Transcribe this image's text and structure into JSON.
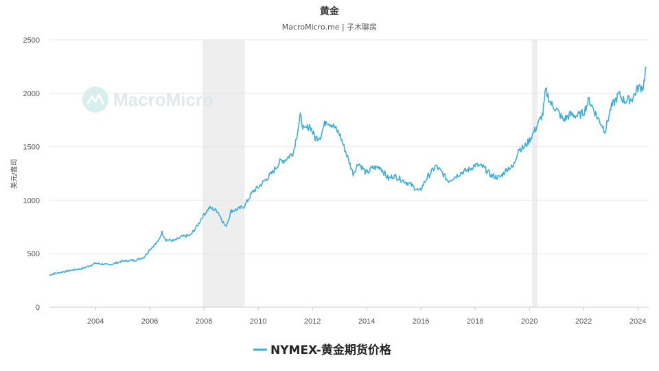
{
  "header": {
    "title": "黄金",
    "subtitle": "MacroMicro.me | 子木聊房"
  },
  "watermark": {
    "text": "MacroMicro"
  },
  "colors": {
    "series": "#3bafda",
    "shade": "#eeeeee",
    "grid": "#e6e6e6",
    "watermark_circle": "#d7efee"
  },
  "chart_data": {
    "type": "line",
    "title": "黄金",
    "subtitle": "MacroMicro.me | 子木聊房",
    "ylabel": "美元/盎司",
    "xlabel": "",
    "xlim": [
      2002.3,
      2024.4
    ],
    "ylim": [
      0,
      2500
    ],
    "x_ticks": [
      2004,
      2006,
      2008,
      2010,
      2012,
      2014,
      2016,
      2018,
      2020,
      2022,
      2024
    ],
    "y_ticks": [
      0,
      500,
      1000,
      1500,
      2000,
      2500
    ],
    "grid": true,
    "legend_position": "bottom-center",
    "recession_shading": [
      [
        2007.95,
        2009.5
      ],
      [
        2020.1,
        2020.3
      ]
    ],
    "series": [
      {
        "name": "NYMEX-黄金期货价格",
        "x": [
          2002.3,
          2002.5,
          2003.0,
          2003.5,
          2004.0,
          2004.5,
          2005.0,
          2005.5,
          2005.8,
          2006.0,
          2006.3,
          2006.45,
          2006.6,
          2006.9,
          2007.2,
          2007.5,
          2007.8,
          2007.95,
          2008.2,
          2008.5,
          2008.8,
          2008.9,
          2009.0,
          2009.3,
          2009.5,
          2009.8,
          2010.0,
          2010.5,
          2010.8,
          2011.0,
          2011.3,
          2011.55,
          2011.7,
          2011.9,
          2012.1,
          2012.3,
          2012.5,
          2012.75,
          2013.0,
          2013.3,
          2013.5,
          2013.7,
          2014.0,
          2014.2,
          2014.5,
          2014.8,
          2015.0,
          2015.3,
          2015.6,
          2015.95,
          2016.2,
          2016.55,
          2016.8,
          2017.0,
          2017.5,
          2017.8,
          2018.0,
          2018.3,
          2018.6,
          2018.9,
          2019.2,
          2019.4,
          2019.6,
          2019.8,
          2020.0,
          2020.25,
          2020.5,
          2020.6,
          2020.8,
          2021.0,
          2021.25,
          2021.5,
          2021.8,
          2022.0,
          2022.2,
          2022.5,
          2022.8,
          2023.0,
          2023.3,
          2023.5,
          2023.8,
          2024.0,
          2024.2,
          2024.3
        ],
        "y": [
          300,
          315,
          340,
          360,
          410,
          395,
          430,
          440,
          470,
          540,
          610,
          700,
          630,
          620,
          660,
          670,
          780,
          850,
          930,
          900,
          750,
          820,
          900,
          920,
          950,
          1080,
          1120,
          1250,
          1360,
          1380,
          1450,
          1780,
          1650,
          1700,
          1580,
          1600,
          1750,
          1700,
          1620,
          1400,
          1250,
          1350,
          1250,
          1300,
          1310,
          1200,
          1230,
          1190,
          1150,
          1080,
          1200,
          1320,
          1250,
          1180,
          1260,
          1290,
          1330,
          1310,
          1230,
          1210,
          1300,
          1310,
          1480,
          1490,
          1560,
          1680,
          1810,
          2030,
          1900,
          1850,
          1750,
          1800,
          1790,
          1820,
          1940,
          1780,
          1650,
          1860,
          1990,
          1930,
          1950,
          2050,
          2060,
          2250
        ]
      }
    ]
  }
}
